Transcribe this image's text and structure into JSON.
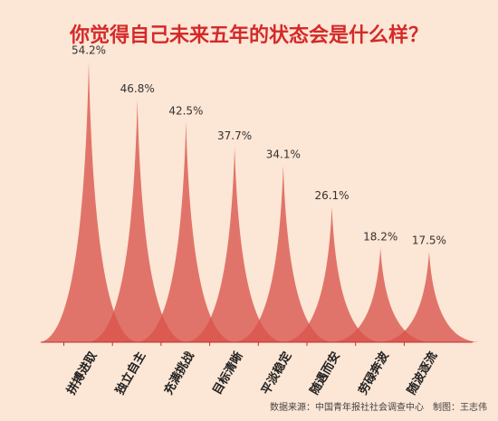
{
  "chart_data": {
    "type": "spike",
    "title": "你觉得自己未来五年的状态会是什么样？",
    "categories": [
      "拼搏进取",
      "独立自主",
      "充满挑战",
      "目标清晰",
      "平淡稳定",
      "随遇而安",
      "劳碌奔波",
      "随波逐流"
    ],
    "values": [
      54.2,
      46.8,
      42.5,
      37.7,
      34.1,
      26.1,
      18.2,
      17.5
    ],
    "value_labels": [
      "54.2%",
      "46.8%",
      "42.5%",
      "37.7%",
      "34.1%",
      "26.1%",
      "18.2%",
      "17.5%"
    ],
    "color": "#d9534c",
    "source": "数据来源：中国青年报社社会调查中心　制图：王志伟"
  }
}
